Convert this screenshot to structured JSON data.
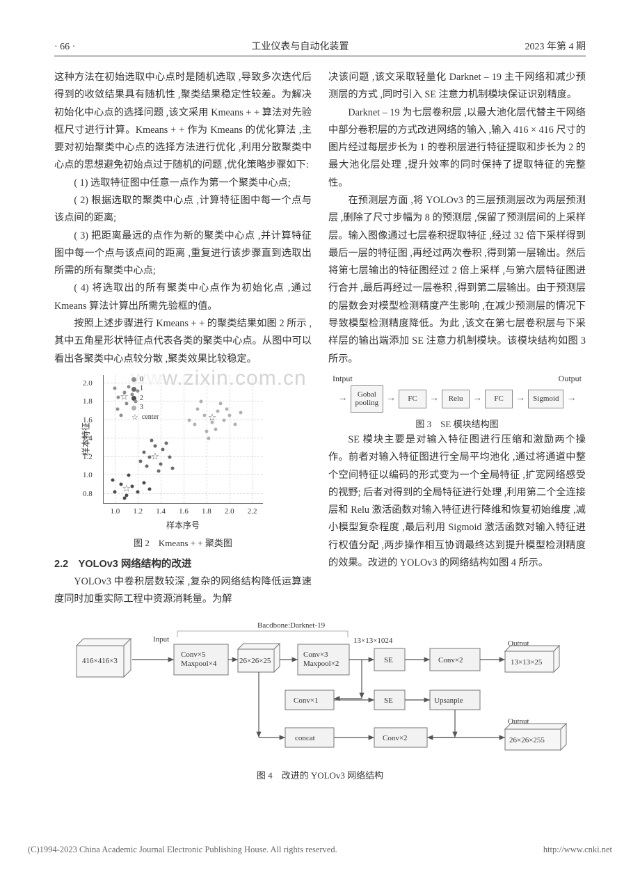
{
  "header": {
    "page_num": "· 66 ·",
    "journal": "工业仪表与自动化装置",
    "issue": "2023 年第 4 期"
  },
  "left": {
    "p1": "这种方法在初始选取中心点时是随机选取 ,导致多次迭代后得到的收敛结果具有随机性 ,聚类结果稳定性较差。为解决初始化中心点的选择问题 ,该文采用 Kmeans + + 算法对先验框尺寸进行计算。Kmeans + + 作为 Kmeans 的优化算法 ,主要对初始聚类中心点的选择方法进行优化 ,利用分散聚类中心点的思想避免初始点过于随机的问题 ,优化策略步骤如下:",
    "s1": "( 1) 选取特征图中任意一点作为第一个聚类中心点;",
    "s2": "( 2) 根据选取的聚类中心点 ,计算特征图中每一个点与该点间的距离;",
    "s3": "( 3) 把距离最远的点作为新的聚类中心点 ,并计算特征图中每一个点与该点间的距离 ,重复进行该步骤直到选取出所需的所有聚类中心点;",
    "s4": "( 4) 将选取出的所有聚类中心点作为初始化点 ,通过 Kmeans 算法计算出所需先验框的值。",
    "p2": "按照上述步骤进行 Kmeans + + 的聚类结果如图 2 所示 ,其中五角星形状特征点代表各类的聚类中心点。从图中可以看出各聚类中心点较分散 ,聚类效果比较稳定。",
    "sec22": "2.2　YOLOv3 网络结构的改进",
    "p3": "YOLOv3 中卷积层数较深 ,复杂的网络结构降低运算速度同时加重实际工程中资源消耗量。为解"
  },
  "right": {
    "p1": "决该问题 ,该文采取轻量化 Darknet – 19 主干网络和减少预测层的方式 ,同时引入 SE 注意力机制模块保证识别精度。",
    "p2": "Darknet – 19 为七层卷积层 ,以最大池化层代替主干网络中部分卷积层的方式改进网络的输入 ,输入 416 × 416 尺寸的图片经过每层步长为 1 的卷积层进行特征提取和步长为 2 的最大池化层处理 ,提升效率的同时保持了提取特征的完整性。",
    "p3": "在预测层方面 ,将 YOLOv3 的三层预测层改为两层预测层 ,删除了尺寸步幅为 8 的预测层 ,保留了预测层间的上采样层。输入图像通过七层卷积提取特征 ,经过 32 倍下采样得到最后一层的特征图 ,再经过两次卷积 ,得到第一层输出。然后将第七层输出的特征图经过 2 倍上采样 ,与第六层特征图进行合并 ,最后再经过一层卷积 ,得到第二层输出。由于预测层的层数会对模型检测精度产生影响 ,在减少预测层的情况下导致模型检测精度降低。为此 ,该文在第七层卷积层与下采样层的输出端添加 SE 注意力机制模块。该模块结构如图 3 所示。",
    "p4": "SE 模块主要是对输入特征图进行压缩和激励两个操作。前者对输入特征图进行全局平均池化 ,通过将通道中整个空间特征以编码的形式变为一个全局特征 ,扩宽网络感受的视野; 后者对得到的全局特征进行处理 ,利用第二个全连接层和 Relu 激活函数对输入特征进行降维和恢复初始维度 ,减小模型复杂程度 ,最后利用 Sigmoid 激活函数对输入特征进行权值分配 ,两步操作相互协调最终达到提升模型检测精度的效果。改进的 YOLOv3 的网络结构如图 4 所示。"
  },
  "fig2": {
    "caption": "图 2　Kmeans + + 聚类图",
    "xlabel": "样本序号",
    "ylabel": "样本特征",
    "xlim": [
      0.9,
      2.3
    ],
    "ylim": [
      0.7,
      2.1
    ],
    "xticks": [
      "1.0",
      "1.2",
      "1.4",
      "1.6",
      "1.8",
      "2.0",
      "2.2"
    ],
    "yticks": [
      "0.8",
      "1.0",
      "1.2",
      "1.4",
      "1.6",
      "1.8",
      "2.0"
    ],
    "xtick_pos": [
      1.0,
      1.2,
      1.4,
      1.6,
      1.8,
      2.0,
      2.2
    ],
    "ytick_pos": [
      0.8,
      1.0,
      1.2,
      1.4,
      1.6,
      1.8,
      2.0
    ],
    "grid_color": "#dddddd",
    "legend": [
      {
        "label": "0",
        "type": "dot",
        "color": "#8e8e8e"
      },
      {
        "label": "1",
        "type": "dot",
        "color": "#6a6a6a"
      },
      {
        "label": "2",
        "type": "dot",
        "color": "#4b4b4b"
      },
      {
        "label": "3",
        "type": "dot",
        "color": "#b0b0b0"
      },
      {
        "label": "center",
        "type": "star",
        "color": "#555555"
      }
    ],
    "clusters": [
      {
        "color": "#8e8e8e",
        "size": 5,
        "points": [
          [
            1.0,
            1.95
          ],
          [
            1.03,
            1.85
          ],
          [
            1.08,
            1.9
          ],
          [
            1.1,
            1.78
          ],
          [
            1.02,
            1.72
          ],
          [
            1.15,
            1.88
          ],
          [
            1.18,
            1.8
          ],
          [
            1.12,
            1.96
          ],
          [
            1.05,
            1.65
          ],
          [
            1.2,
            1.92
          ]
        ]
      },
      {
        "color": "#6a6a6a",
        "size": 5,
        "points": [
          [
            1.3,
            1.2
          ],
          [
            1.35,
            1.32
          ],
          [
            1.28,
            1.1
          ],
          [
            1.42,
            1.28
          ],
          [
            1.4,
            1.12
          ],
          [
            1.25,
            1.25
          ],
          [
            1.48,
            1.2
          ],
          [
            1.38,
            1.05
          ],
          [
            1.32,
            1.38
          ],
          [
            1.45,
            1.35
          ],
          [
            1.5,
            1.08
          ],
          [
            1.22,
            1.15
          ]
        ]
      },
      {
        "color": "#4b4b4b",
        "size": 5,
        "points": [
          [
            1.0,
            0.82
          ],
          [
            1.05,
            0.9
          ],
          [
            1.1,
            0.78
          ],
          [
            1.15,
            0.88
          ],
          [
            0.98,
            0.95
          ],
          [
            1.2,
            0.82
          ],
          [
            1.12,
            1.0
          ],
          [
            1.25,
            0.92
          ],
          [
            1.08,
            0.75
          ],
          [
            1.3,
            0.85
          ]
        ]
      },
      {
        "color": "#b0b0b0",
        "size": 5,
        "points": [
          [
            1.7,
            1.55
          ],
          [
            1.78,
            1.65
          ],
          [
            1.85,
            1.58
          ],
          [
            1.9,
            1.7
          ],
          [
            1.95,
            1.6
          ],
          [
            1.8,
            1.48
          ],
          [
            1.72,
            1.72
          ],
          [
            2.0,
            1.65
          ],
          [
            1.88,
            1.5
          ],
          [
            1.65,
            1.6
          ],
          [
            1.92,
            1.78
          ],
          [
            1.75,
            1.8
          ],
          [
            2.05,
            1.55
          ],
          [
            1.82,
            1.4
          ],
          [
            1.98,
            1.72
          ],
          [
            2.1,
            1.68
          ]
        ]
      }
    ],
    "centers": [
      [
        1.08,
        1.85
      ],
      [
        1.35,
        1.2
      ],
      [
        1.1,
        0.85
      ],
      [
        1.85,
        1.62
      ]
    ]
  },
  "fig3": {
    "caption": "图 3　SE 模块结构图",
    "input_label": "Intput",
    "output_label": "Output",
    "boxes": [
      "Gobal\npooling",
      "FC",
      "Relu",
      "FC",
      "Sigmoid"
    ],
    "box_bg": "#f5f5f5",
    "box_border": "#888888",
    "arrow_color": "#666666"
  },
  "fig4": {
    "caption": "图 4　改进的 YOLOv3 网络结构",
    "labels": {
      "input_cube": "416×416×3",
      "input_tag": "Input",
      "backbone": "Bacdbone:Darknet-19",
      "block_a": "Conv×5\nMaxpool×4",
      "hidden_cube": "26×26×25",
      "block_b": "Conv×3\nMaxpool×2",
      "branch_dim": "13×13×1024",
      "se": "SE",
      "convx2": "Conv×2",
      "out1_tag": "Output",
      "out1_cube": "13×13×25",
      "convx1": "Conv×1",
      "upsample": "Upsanple",
      "concat": "concat",
      "out2_tag": "Output",
      "out2_cube": "26×26×255"
    },
    "colors": {
      "box_fill": "#f2f2f2",
      "box_stroke": "#777777",
      "arrow": "#555555",
      "text": "#333333"
    }
  },
  "watermark": "www.zixin.com.cn",
  "footer": {
    "left": "(C)1994-2023 China Academic Journal Electronic Publishing House. All rights reserved.",
    "right": "http://www.cnki.net"
  }
}
